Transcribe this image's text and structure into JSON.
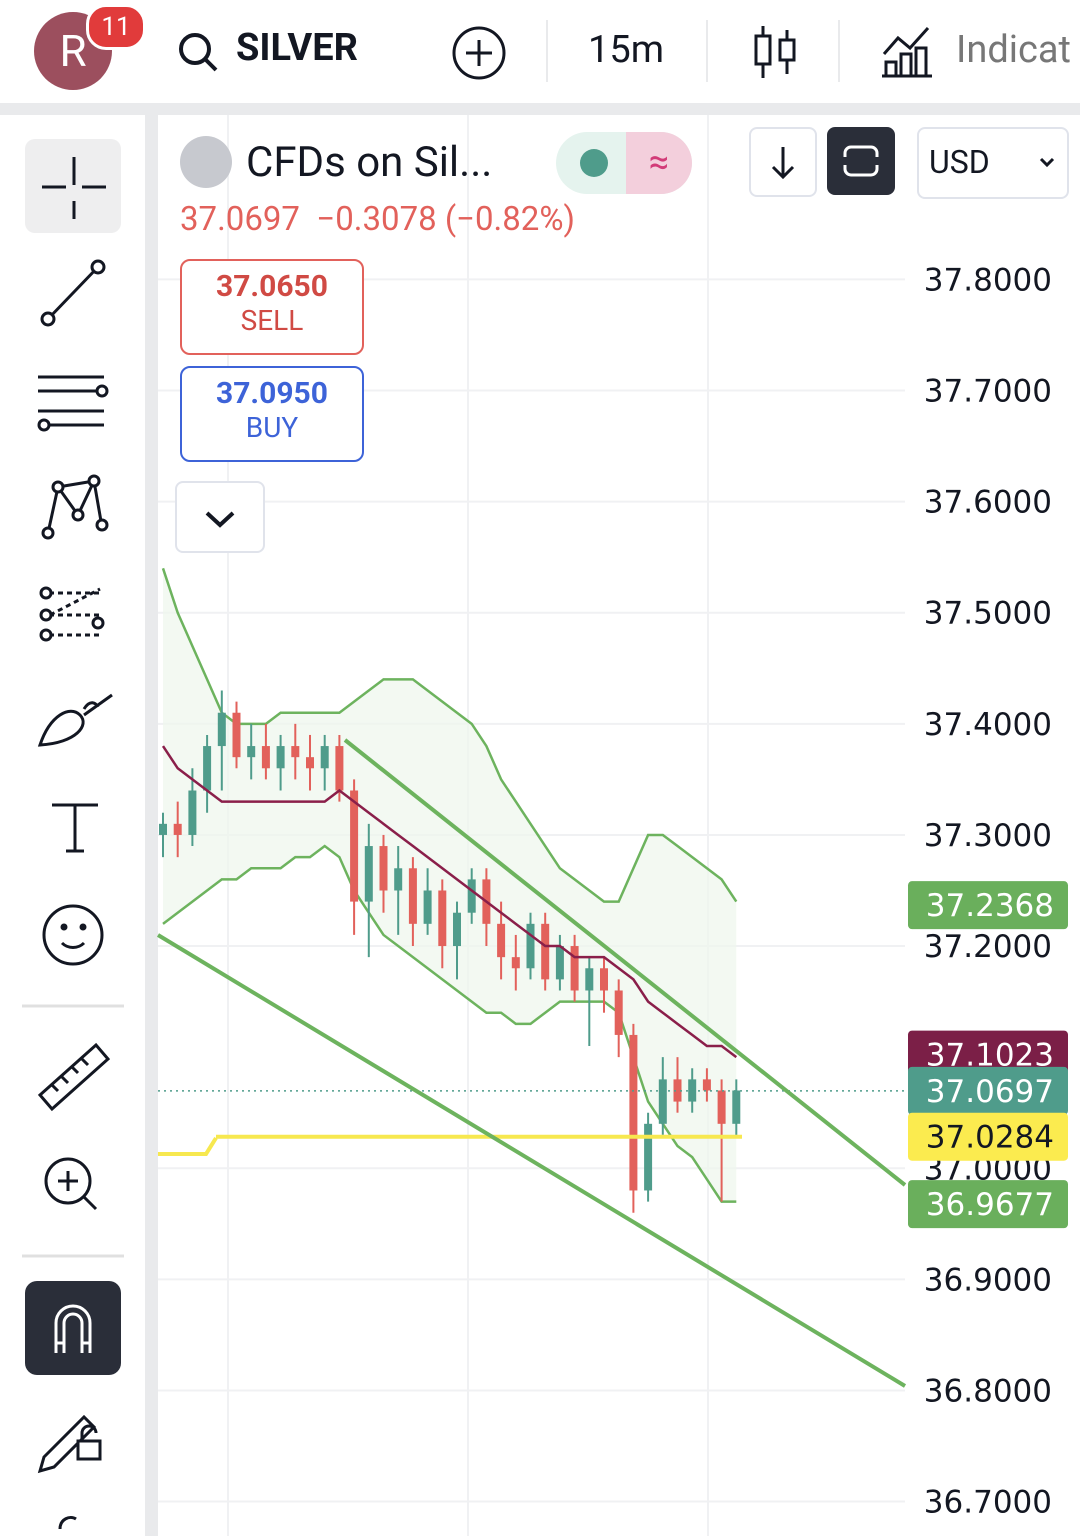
{
  "header": {
    "avatar": "R",
    "badge": "11",
    "symbol": "SILVER",
    "interval": "15m",
    "indicators": "Indicat"
  },
  "legend": {
    "title": "CFDs on Sil...",
    "price": "37.0697",
    "change": "−0.3078 (−0.82%)",
    "sell_price": "37.0650",
    "sell": "SELL",
    "buy_price": "37.0950",
    "buy": "BUY",
    "currency": "USD"
  },
  "chart_data": {
    "type": "candlestick",
    "ylim": [
      36.669,
      37.948
    ],
    "yticks": [
      {
        "value": 37.8,
        "label": "37.8000"
      },
      {
        "value": 37.7,
        "label": "37.7000"
      },
      {
        "value": 37.6,
        "label": "37.6000"
      },
      {
        "value": 37.5,
        "label": "37.5000"
      },
      {
        "value": 37.4,
        "label": "37.4000"
      },
      {
        "value": 37.3,
        "label": "37.3000"
      },
      {
        "value": 37.2,
        "label": "37.2000"
      },
      {
        "value": 37.0,
        "label": "37.0000"
      },
      {
        "value": 36.9,
        "label": "36.9000"
      },
      {
        "value": 36.8,
        "label": "36.8000"
      },
      {
        "value": 36.7,
        "label": "36.7000"
      }
    ],
    "grid": true,
    "up_color": "#4f9c8b",
    "down_color": "#e2615b",
    "open": [
      37.3,
      37.31,
      37.3,
      37.34,
      37.38,
      37.41,
      37.37,
      37.38,
      37.36,
      37.38,
      37.37,
      37.36,
      37.38,
      37.34,
      37.24,
      37.29,
      37.25,
      37.27,
      37.22,
      37.25,
      37.2,
      37.23,
      37.26,
      37.22,
      37.19,
      37.18,
      37.22,
      37.17,
      37.2,
      37.16,
      37.18,
      37.16,
      37.12,
      36.98,
      37.04,
      37.08,
      37.06,
      37.08,
      37.07,
      37.04
    ],
    "high": [
      37.32,
      37.33,
      37.36,
      37.39,
      37.43,
      37.42,
      37.4,
      37.4,
      37.39,
      37.4,
      37.39,
      37.39,
      37.39,
      37.35,
      37.31,
      37.3,
      37.29,
      37.28,
      37.27,
      37.26,
      37.24,
      37.27,
      37.27,
      37.24,
      37.21,
      37.23,
      37.23,
      37.21,
      37.21,
      37.19,
      37.19,
      37.17,
      37.13,
      37.05,
      37.1,
      37.1,
      37.09,
      37.09,
      37.08,
      37.08
    ],
    "low": [
      37.28,
      37.28,
      37.29,
      37.32,
      37.34,
      37.36,
      37.35,
      37.35,
      37.34,
      37.35,
      37.34,
      37.34,
      37.33,
      37.21,
      37.19,
      37.23,
      37.21,
      37.2,
      37.21,
      37.18,
      37.17,
      37.22,
      37.2,
      37.17,
      37.16,
      37.17,
      37.16,
      37.16,
      37.15,
      37.11,
      37.14,
      37.1,
      36.96,
      36.97,
      37.03,
      37.05,
      37.05,
      37.06,
      36.97,
      37.03
    ],
    "close": [
      37.31,
      37.3,
      37.34,
      37.38,
      37.41,
      37.37,
      37.38,
      37.36,
      37.38,
      37.37,
      37.36,
      37.38,
      37.34,
      37.24,
      37.29,
      37.25,
      37.27,
      37.22,
      37.25,
      37.2,
      37.23,
      37.26,
      37.22,
      37.19,
      37.18,
      37.22,
      37.17,
      37.2,
      37.16,
      37.18,
      37.16,
      37.12,
      36.98,
      37.04,
      37.08,
      37.06,
      37.08,
      37.07,
      37.04,
      37.07
    ],
    "bands": {
      "upper": [
        37.54,
        37.5,
        37.47,
        37.44,
        37.41,
        37.4,
        37.4,
        37.4,
        37.41,
        37.41,
        37.41,
        37.41,
        37.41,
        37.42,
        37.43,
        37.44,
        37.44,
        37.44,
        37.43,
        37.42,
        37.41,
        37.4,
        37.38,
        37.35,
        37.33,
        37.31,
        37.29,
        37.27,
        37.26,
        37.25,
        37.24,
        37.24,
        37.27,
        37.3,
        37.3,
        37.29,
        37.28,
        37.27,
        37.26,
        37.24
      ],
      "middle": [
        37.38,
        37.36,
        37.35,
        37.34,
        37.33,
        37.33,
        37.33,
        37.33,
        37.33,
        37.33,
        37.33,
        37.33,
        37.34,
        37.33,
        37.32,
        37.31,
        37.3,
        37.29,
        37.28,
        37.27,
        37.26,
        37.25,
        37.24,
        37.23,
        37.22,
        37.21,
        37.2,
        37.2,
        37.19,
        37.19,
        37.19,
        37.18,
        37.17,
        37.15,
        37.14,
        37.13,
        37.12,
        37.11,
        37.11,
        37.1
      ],
      "lower": [
        37.22,
        37.23,
        37.24,
        37.25,
        37.26,
        37.26,
        37.27,
        37.27,
        37.27,
        37.28,
        37.28,
        37.29,
        37.28,
        37.25,
        37.23,
        37.21,
        37.2,
        37.19,
        37.18,
        37.17,
        37.16,
        37.15,
        37.14,
        37.14,
        37.13,
        37.13,
        37.14,
        37.15,
        37.15,
        37.15,
        37.15,
        37.14,
        37.1,
        37.06,
        37.04,
        37.02,
        37.01,
        36.99,
        36.97,
        36.97
      ],
      "band_color": "#6db35e",
      "middle_color": "#8a1f4a"
    },
    "support_level": 37.0284,
    "support_color": "#f7e84f",
    "price_labels": [
      {
        "value": 37.2368,
        "color": "#6aaf5c"
      },
      {
        "value": 37.1023,
        "color": "#7b1f47"
      },
      {
        "value": 37.0697,
        "color": "#4f9c8b"
      },
      {
        "value": 37.0284,
        "color": "#fbeb4f"
      },
      {
        "value": 36.9677,
        "color": "#6aaf5c"
      }
    ]
  }
}
